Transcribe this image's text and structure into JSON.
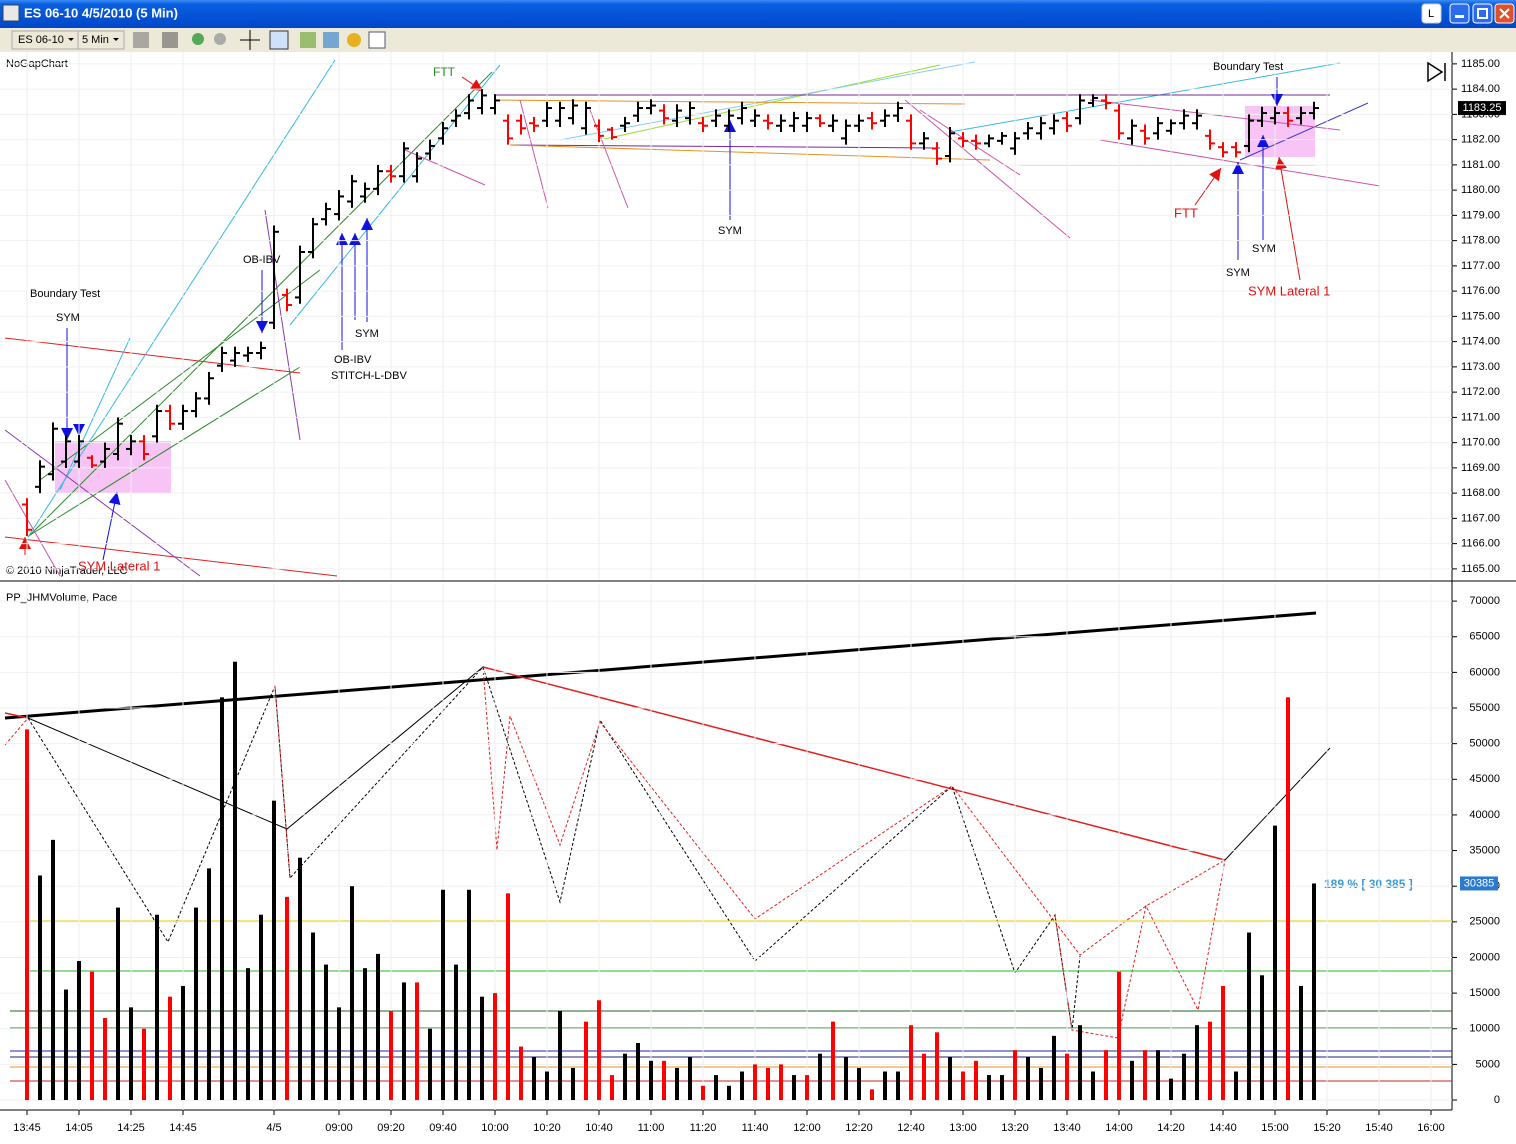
{
  "window": {
    "title": "ES 06-10  4/5/2010 (5 Min)",
    "instrument": "ES 06-10",
    "interval": "5 Min",
    "button_l": "L"
  },
  "chart_data": [
    {
      "type": "ohlc",
      "label": "NoGapChart",
      "copyright": "© 2010 NinjaTrader, LLC",
      "up_color": "#000000",
      "down_color": "#ff0000",
      "grid": true,
      "ylim": [
        1164.56,
        1185.47
      ],
      "yticks": [
        {
          "value": 1165,
          "label": "1165.00"
        },
        {
          "value": 1166,
          "label": "1166.00"
        },
        {
          "value": 1167,
          "label": "1167.00"
        },
        {
          "value": 1168,
          "label": "1168.00"
        },
        {
          "value": 1169,
          "label": "1169.00"
        },
        {
          "value": 1170,
          "label": "1170.00"
        },
        {
          "value": 1171,
          "label": "1171.00"
        },
        {
          "value": 1172,
          "label": "1172.00"
        },
        {
          "value": 1173,
          "label": "1173.00"
        },
        {
          "value": 1174,
          "label": "1174.00"
        },
        {
          "value": 1175,
          "label": "1175.00"
        },
        {
          "value": 1176,
          "label": "1176.00"
        },
        {
          "value": 1177,
          "label": "1177.00"
        },
        {
          "value": 1178,
          "label": "1178.00"
        },
        {
          "value": 1179,
          "label": "1179.00"
        },
        {
          "value": 1180,
          "label": "1180.00"
        },
        {
          "value": 1181,
          "label": "1181.00"
        },
        {
          "value": 1182,
          "label": "1182.00"
        },
        {
          "value": 1183,
          "label": "1183.00"
        },
        {
          "value": 1184,
          "label": "1184.00"
        },
        {
          "value": 1185,
          "label": "1185.00"
        }
      ],
      "annotations": [
        "FTT",
        "Boundary Test",
        "SYM",
        "SYM Lateral 1",
        "OB-IBV",
        "OB-IBV",
        "STITCH-L-DBV",
        "SYM",
        "SYM",
        "Boundary Test",
        "FTT",
        "SYM",
        "SYM",
        "SYM Lateral 1"
      ],
      "open": [
        1167.55,
        1168.25,
        1168.75,
        1169.25,
        1169.25,
        1169.4,
        1169.25,
        1169.55,
        1169.75,
        1170.05,
        1170.25,
        1171.25,
        1170.75,
        1171.25,
        1171.75,
        1173.05,
        1173.25,
        1173.45,
        1173.55,
        1174.75,
        1175.85,
        1175.75,
        1177.55,
        1178.85,
        1179.05,
        1179.55,
        1179.75,
        1180.05,
        1180.75,
        1180.55,
        1180.55,
        1181.45,
        1182.05,
        1182.75,
        1183.05,
        1183.25,
        1183.25,
        1182.75,
        1182.75,
        1182.65,
        1182.75,
        1182.75,
        1182.85,
        1182.45,
        1182.55,
        1182.4,
        1182.55,
        1182.95,
        1183.25,
        1183.15,
        1182.75,
        1182.85,
        1182.65,
        1182.75,
        1182.55,
        1182.85,
        1182.75,
        1182.75,
        1182.55,
        1182.55,
        1182.55,
        1182.85,
        1182.55,
        1182.05,
        1182.55,
        1182.85,
        1182.75,
        1182.95,
        1182.75,
        1181.85,
        1181.65,
        1181.35,
        1182.05,
        1181.95,
        1181.85,
        1181.95,
        1181.65,
        1182.25,
        1182.25,
        1182.45,
        1182.85,
        1182.85,
        1183.45,
        1183.55,
        1183.15,
        1182.05,
        1182.35,
        1182.25,
        1182.35,
        1182.65,
        1182.65,
        1182.15,
        1181.7,
        1181.7,
        1181.75,
        1182.75,
        1182.85,
        1183.05,
        1182.85,
        1183.05
      ],
      "high": [
        1167.8,
        1169.3,
        1170.8,
        1170.3,
        1170.3,
        1169.5,
        1170,
        1171,
        1170.3,
        1170.3,
        1171.5,
        1171.5,
        1171.5,
        1172,
        1172.8,
        1173.8,
        1173.8,
        1173.8,
        1174,
        1178.6,
        1176.1,
        1177.8,
        1178.9,
        1179.5,
        1180,
        1180.6,
        1180.3,
        1181,
        1181,
        1181.9,
        1181.5,
        1182,
        1182.7,
        1183.2,
        1183.8,
        1184,
        1183.8,
        1183,
        1183,
        1182.9,
        1183.5,
        1183.5,
        1183.6,
        1183.5,
        1182.8,
        1182.5,
        1182.9,
        1183.5,
        1183.6,
        1183.4,
        1183.4,
        1183.5,
        1182.9,
        1183.2,
        1183.2,
        1183.5,
        1183.2,
        1183,
        1183,
        1183.1,
        1183.1,
        1183,
        1183,
        1182.8,
        1183,
        1183.1,
        1183.2,
        1183.5,
        1183,
        1182.3,
        1181.9,
        1182.5,
        1182.3,
        1182.2,
        1182.2,
        1182.3,
        1182.3,
        1182.7,
        1182.9,
        1183,
        1183.1,
        1183.8,
        1183.8,
        1183.8,
        1183.4,
        1182.8,
        1182.6,
        1182.9,
        1182.8,
        1183.2,
        1183.2,
        1182.4,
        1181.9,
        1181.9,
        1183,
        1183.3,
        1183.3,
        1183.3,
        1183.3,
        1183.5
      ],
      "low": [
        1166.3,
        1168,
        1168.5,
        1169,
        1169,
        1169,
        1169,
        1169.3,
        1169.5,
        1169.3,
        1170,
        1170.5,
        1170.5,
        1171,
        1171.5,
        1172.8,
        1173,
        1173.2,
        1173.3,
        1174.5,
        1175.2,
        1175.5,
        1177.3,
        1178.6,
        1178.8,
        1179.3,
        1179.5,
        1179.8,
        1180.3,
        1180.3,
        1180.3,
        1181.2,
        1181.8,
        1182.5,
        1182.8,
        1183,
        1183,
        1181.8,
        1182.2,
        1182.3,
        1182.5,
        1182.5,
        1182.6,
        1182.2,
        1181.9,
        1182,
        1182.3,
        1182.7,
        1183,
        1182.6,
        1182.5,
        1182.6,
        1182.3,
        1182.5,
        1182.3,
        1182.6,
        1182.5,
        1182.4,
        1182.3,
        1182.3,
        1182.3,
        1182.5,
        1182.3,
        1181.8,
        1182.3,
        1182.4,
        1182.5,
        1182.7,
        1181.6,
        1181.6,
        1181,
        1181.1,
        1181.7,
        1181.6,
        1181.7,
        1181.8,
        1181.4,
        1182,
        1182,
        1182.2,
        1182.3,
        1182.6,
        1183.3,
        1183.2,
        1182,
        1181.8,
        1181.8,
        1182,
        1182.2,
        1182.4,
        1182.4,
        1181.6,
        1181.3,
        1181.3,
        1181.5,
        1182.5,
        1182.6,
        1182.5,
        1182.6,
        1182.8
      ],
      "close": [
        1166.55,
        1169.05,
        1170.55,
        1170.05,
        1170.05,
        1169.1,
        1169.75,
        1170.75,
        1170.05,
        1169.55,
        1171.25,
        1170.75,
        1171.25,
        1171.75,
        1172.55,
        1173.55,
        1173.55,
        1173.55,
        1173.75,
        1178.35,
        1175.45,
        1177.55,
        1178.65,
        1179.25,
        1179.75,
        1180.35,
        1180.05,
        1180.75,
        1180.55,
        1181.65,
        1181.25,
        1181.75,
        1182.45,
        1182.95,
        1183.55,
        1183.75,
        1183.55,
        1182.05,
        1182.45,
        1182.55,
        1183.25,
        1183.25,
        1183.35,
        1183.25,
        1182.15,
        1182.1,
        1182.65,
        1183.25,
        1183.35,
        1182.85,
        1183.15,
        1183.25,
        1182.55,
        1182.95,
        1182.95,
        1183.25,
        1182.95,
        1182.65,
        1182.75,
        1182.85,
        1182.85,
        1182.65,
        1182.75,
        1182.55,
        1182.75,
        1182.65,
        1182.95,
        1183.25,
        1181.85,
        1182.05,
        1181.25,
        1182.25,
        1181.95,
        1181.85,
        1182.05,
        1182.15,
        1182.05,
        1182.45,
        1182.65,
        1182.75,
        1182.55,
        1183.55,
        1183.65,
        1183.45,
        1182.25,
        1182.55,
        1182.05,
        1182.65,
        1182.65,
        1182.95,
        1182.95,
        1181.85,
        1181.5,
        1181.5,
        1182.75,
        1183.05,
        1183.05,
        1182.75,
        1183.05,
        1183.25
      ]
    },
    {
      "type": "bar",
      "label": "PP_JHMVolume, Pace",
      "annotation": "189 % [ 30 385 ]",
      "grid": true,
      "ylim": [
        -1400,
        72400
      ],
      "yticks": [
        0,
        5000,
        10000,
        15000,
        20000,
        25000,
        30000,
        35000,
        40000,
        45000,
        50000,
        55000,
        60000,
        65000,
        70000
      ],
      "categories": [
        "13:45",
        null,
        null,
        null,
        "14:05",
        null,
        null,
        null,
        "14:25",
        null,
        null,
        null,
        "14:45",
        null,
        null,
        null,
        null,
        null,
        null,
        "4/5",
        null,
        null,
        null,
        null,
        "09:00",
        null,
        null,
        null,
        "09:20",
        null,
        null,
        null,
        "09:40",
        null,
        null,
        null,
        "10:00",
        null,
        null,
        null,
        "10:20",
        null,
        null,
        null,
        "10:40",
        null,
        null,
        null,
        "11:00",
        null,
        null,
        null,
        "11:20",
        null,
        null,
        null,
        "11:40",
        null,
        null,
        null,
        "12:00",
        null,
        null,
        null,
        "12:20",
        null,
        null,
        null,
        "12:40",
        null,
        null,
        null,
        "13:00",
        null,
        null,
        null,
        "13:20",
        null,
        null,
        null,
        "13:40",
        null,
        null,
        null,
        "14:00",
        null,
        null,
        null,
        "14:20",
        null,
        null,
        null,
        "14:40",
        null,
        null,
        null,
        "15:00",
        null,
        null,
        null,
        "15:20",
        null,
        null,
        null,
        "15:40",
        null,
        null,
        null,
        "16:00"
      ],
      "values": [
        52000,
        31500,
        36500,
        15500,
        19500,
        18000,
        11500,
        27000,
        13000,
        10000,
        26000,
        14500,
        16000,
        27000,
        32500,
        56500,
        61500,
        18500,
        26000,
        42000,
        28500,
        34000,
        23500,
        19000,
        13000,
        30000,
        18500,
        20500,
        12500,
        16500,
        16500,
        10000,
        29500,
        19000,
        29500,
        14500,
        15000,
        29000,
        7500,
        6000,
        4000,
        12500,
        4500,
        11000,
        14000,
        3500,
        6500,
        8000,
        5500,
        5500,
        4500,
        6000,
        2000,
        3500,
        2000,
        4000,
        5000,
        4500,
        5000,
        3500,
        3500,
        6500,
        11000,
        6000,
        4500,
        1500,
        4000,
        4000,
        10500,
        6500,
        9500,
        6000,
        4000,
        5500,
        3500,
        3500,
        7000,
        6000,
        4500,
        9000,
        6500,
        10500,
        4000,
        7000,
        18000,
        5500,
        7000,
        7000,
        3000,
        6500,
        10500,
        11000,
        16000,
        4000,
        23500,
        17500,
        38500,
        56500,
        16000,
        30385,
        null,
        null,
        null,
        null,
        null,
        null,
        null,
        null,
        null
      ],
      "colors": [
        "red",
        "black",
        "black",
        "black",
        "black",
        "red",
        "red",
        "black",
        "black",
        "red",
        "black",
        "red",
        "black",
        "black",
        "black",
        "black",
        "black",
        "black",
        "black",
        "black",
        "red",
        "black",
        "black",
        "black",
        "black",
        "black",
        "black",
        "black",
        "red",
        "black",
        "red",
        "black",
        "black",
        "black",
        "black",
        "black",
        "red",
        "red",
        "red",
        "black",
        "black",
        "black",
        "black",
        "red",
        "red",
        "red",
        "black",
        "black",
        "black",
        "red",
        "black",
        "black",
        "red",
        "black",
        "black",
        "black",
        "red",
        "red",
        "red",
        "black",
        "red",
        "black",
        "red",
        "black",
        "black",
        "red",
        "black",
        "black",
        "red",
        "red",
        "red",
        "black",
        "red",
        "red",
        "black",
        "black",
        "red",
        "black",
        "black",
        "black",
        "red",
        "black",
        "black",
        "red",
        "red",
        "black",
        "red",
        "black",
        "black",
        "black",
        "black",
        "red",
        "red",
        "black",
        "black",
        "black",
        "black",
        "red",
        "black",
        "black",
        null,
        null,
        null,
        null,
        null,
        null,
        null,
        null,
        null
      ]
    }
  ]
}
